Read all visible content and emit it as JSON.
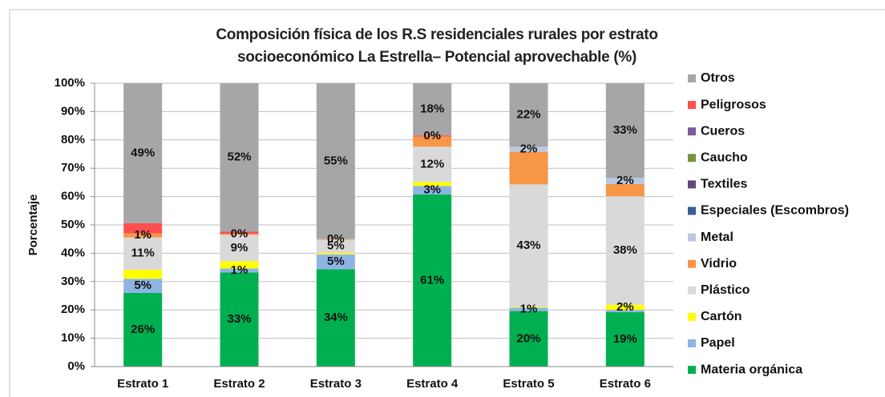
{
  "chart_data": {
    "type": "stacked_bar",
    "title": "Composición física de los R.S residenciales rurales por estrato socioeconómico La Estrella– Potencial aprovechable (%)",
    "y_label": "Porcentaje",
    "categories": [
      "Estrato 1",
      "Estrato 2",
      "Estrato 3",
      "Estrato 4",
      "Estrato 5",
      "Estrato 6"
    ],
    "series": [
      {
        "name": "Materia orgánica",
        "color": "#00b050",
        "values": [
          26,
          33.2,
          34.4,
          60.8,
          19.6,
          19.2
        ],
        "value_labels": [
          "26%",
          "33%",
          "34%",
          "61%",
          "20%",
          "19%"
        ]
      },
      {
        "name": "Papel",
        "color": "#8eb4e3",
        "values": [
          5,
          1.4,
          5.2,
          2.9,
          1.2,
          0.8
        ],
        "value_labels": [
          "5%",
          "1%",
          "5%",
          "3%",
          "1%",
          null
        ]
      },
      {
        "name": "Cartón",
        "color": "#ffff00",
        "values": [
          3.2,
          2.6,
          0.5,
          1.4,
          0.3,
          1.8
        ],
        "value_labels": [
          null,
          null,
          null,
          null,
          null,
          "2%"
        ]
      },
      {
        "name": "Plástico",
        "color": "#d9d9d9",
        "values": [
          11.4,
          9.3,
          4.7,
          12.5,
          43.2,
          38.3
        ],
        "value_labels": [
          "11%",
          "9%",
          "5%",
          "12%",
          "43%",
          "38%"
        ]
      },
      {
        "name": "Vidrio",
        "color": "#f79646",
        "values": [
          1.4,
          0.4,
          0.2,
          3.6,
          11.5,
          4.3
        ],
        "value_labels": [
          "1%",
          "0%",
          "0%",
          null,
          null,
          null
        ]
      },
      {
        "name": "Metal",
        "color": "#b9c9e2",
        "values": [
          0,
          0,
          0,
          0,
          1.8,
          2.2
        ],
        "value_labels": [
          null,
          null,
          null,
          null,
          "2%",
          "2%"
        ]
      },
      {
        "name": "Especiales (Escombros)",
        "color": "#366092",
        "values": [
          0,
          0,
          0,
          0,
          0,
          0
        ]
      },
      {
        "name": "Textiles",
        "color": "#604a7b",
        "values": [
          0,
          0,
          0,
          0,
          0,
          0
        ]
      },
      {
        "name": "Caucho",
        "color": "#77933c",
        "values": [
          0,
          0,
          0,
          0,
          0,
          0
        ]
      },
      {
        "name": "Cueros",
        "color": "#7b5a9e",
        "values": [
          0,
          0,
          0,
          0,
          0,
          0
        ]
      },
      {
        "name": "Peligrosos",
        "color": "#ff5050",
        "values": [
          3.6,
          0.7,
          0,
          0.4,
          0,
          0
        ],
        "value_labels": [
          null,
          null,
          null,
          "0%",
          null,
          null
        ]
      },
      {
        "name": "Otros",
        "color": "#a6a6a6",
        "values": [
          49.4,
          52.4,
          55,
          18.4,
          22.4,
          33.4
        ],
        "value_labels": [
          "49%",
          "52%",
          "55%",
          "18%",
          "22%",
          "33%"
        ]
      }
    ],
    "ylim": [
      0,
      100
    ],
    "yticks": [
      {
        "value": 0,
        "label": "0%"
      },
      {
        "value": 10,
        "label": "10%"
      },
      {
        "value": 20,
        "label": "20%"
      },
      {
        "value": 30,
        "label": "30%"
      },
      {
        "value": 40,
        "label": "40%"
      },
      {
        "value": 50,
        "label": "50%"
      },
      {
        "value": 60,
        "label": "60%"
      },
      {
        "value": 70,
        "label": "70%"
      },
      {
        "value": 80,
        "label": "80%"
      },
      {
        "value": 90,
        "label": "90%"
      },
      {
        "value": 100,
        "label": "100%"
      }
    ],
    "grid": true,
    "legend": "right"
  }
}
